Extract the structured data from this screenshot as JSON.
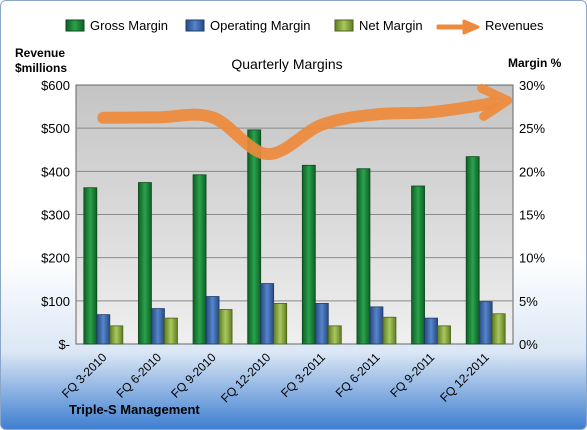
{
  "chart_data": {
    "type": "bar",
    "title": "Quarterly Margins",
    "company": "Triple-S Management",
    "y_left_label": [
      "Revenue",
      "$millions"
    ],
    "y_right_label": "Margin %",
    "y_left_ticks": [
      "$-",
      "$100",
      "$200",
      "$300",
      "$400",
      "$500",
      "$600"
    ],
    "y_right_ticks": [
      "0%",
      "5%",
      "10%",
      "15%",
      "20%",
      "25%",
      "30%"
    ],
    "ylim_left": [
      0,
      600
    ],
    "ylim_right": [
      0,
      30
    ],
    "grid": true,
    "legend_position": "top",
    "categories": [
      "FQ 3-2010",
      "FQ 6-2010",
      "FQ 9-2010",
      "FQ 12-2010",
      "FQ 3-2011",
      "FQ 6-2011",
      "FQ 9-2011",
      "FQ 12-2011"
    ],
    "series": [
      {
        "name": "Gross Margin",
        "axis": "right",
        "color": "#1e8a3c",
        "values": [
          18.1,
          18.7,
          19.6,
          24.8,
          20.7,
          20.3,
          18.3,
          21.7
        ]
      },
      {
        "name": "Operating Margin",
        "axis": "right",
        "color": "#3f6fb5",
        "values": [
          3.4,
          4.1,
          5.5,
          7.0,
          4.7,
          4.3,
          3.0,
          4.9
        ]
      },
      {
        "name": "Net Margin",
        "axis": "right",
        "color": "#8fb04a",
        "values": [
          2.1,
          3.0,
          4.0,
          4.7,
          2.1,
          3.1,
          2.1,
          3.5
        ]
      },
      {
        "name": "Revenues",
        "axis": "left",
        "color": "#ee8a3c",
        "values": [
          524,
          525,
          525,
          440,
          508,
          532,
          537,
          555
        ]
      }
    ]
  }
}
